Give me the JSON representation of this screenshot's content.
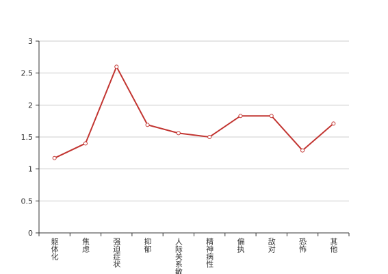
{
  "chart_data": {
    "type": "line",
    "categories": [
      "躯体化",
      "焦虑",
      "强迫症状",
      "抑郁",
      "人际关系敏感",
      "精神病性",
      "偏执",
      "敌对",
      "恐怖",
      "其他"
    ],
    "series": [
      {
        "color": "#c23531",
        "values": [
          1.17,
          1.4,
          2.6,
          1.69,
          1.56,
          1.5,
          1.83,
          1.83,
          1.29,
          1.71
        ]
      }
    ],
    "ylim": [
      0,
      3
    ],
    "yticks": [
      0,
      0.5,
      1,
      1.5,
      2,
      2.5,
      3
    ],
    "grid": true
  }
}
